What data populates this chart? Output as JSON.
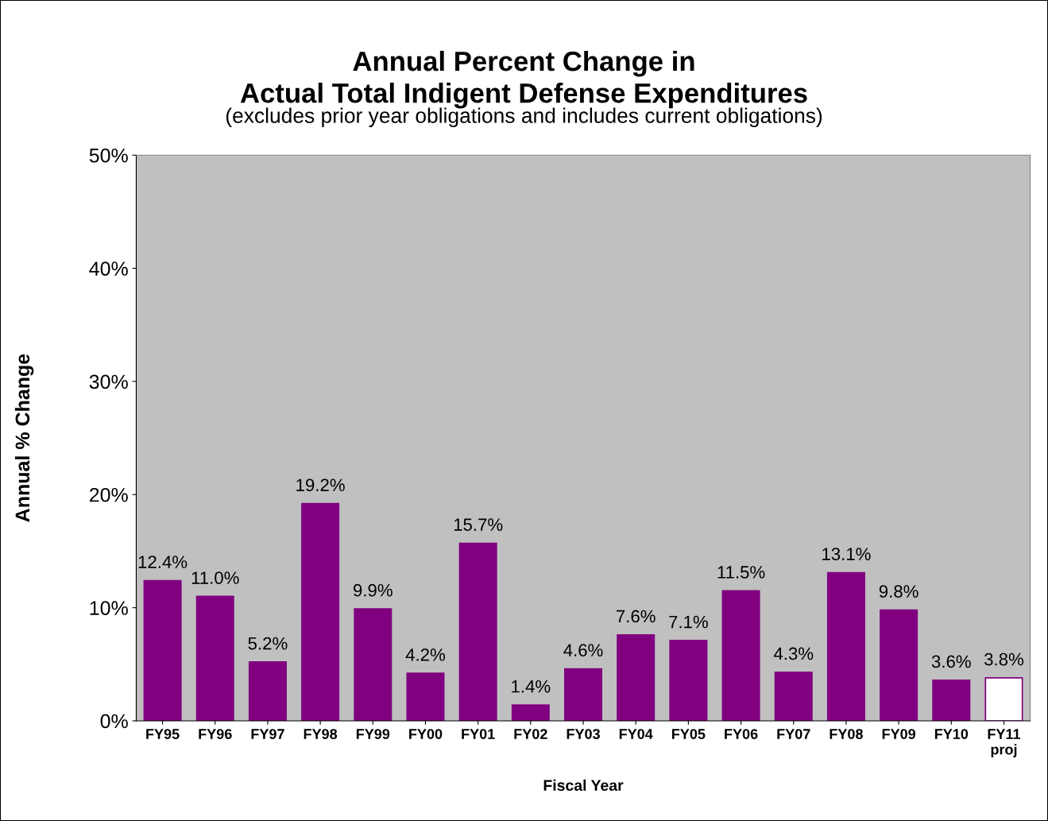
{
  "chart_data": {
    "type": "bar",
    "title": "Annual Percent Change in\nActual Total Indigent Defense Expenditures",
    "subtitle": "(excludes prior year obligations and includes current obligations)",
    "xlabel": "Fiscal Year",
    "ylabel": "Annual % Change",
    "categories": [
      "FY95",
      "FY96",
      "FY97",
      "FY98",
      "FY99",
      "FY00",
      "FY01",
      "FY02",
      "FY03",
      "FY04",
      "FY05",
      "FY06",
      "FY07",
      "FY08",
      "FY09",
      "FY10",
      "FY11\nproj"
    ],
    "values": [
      12.4,
      11.0,
      5.2,
      19.2,
      9.9,
      4.2,
      15.7,
      1.4,
      4.6,
      7.6,
      7.1,
      11.5,
      4.3,
      13.1,
      9.8,
      3.6,
      3.8
    ],
    "colors": [
      "#800080",
      "#800080",
      "#800080",
      "#800080",
      "#800080",
      "#800080",
      "#800080",
      "#800080",
      "#800080",
      "#800080",
      "#800080",
      "#800080",
      "#800080",
      "#800080",
      "#800080",
      "#800080",
      "#ffffff"
    ],
    "value_labels": [
      "12.4%",
      "11.0%",
      "5.2%",
      "19.2%",
      "9.9%",
      "4.2%",
      "15.7%",
      "1.4%",
      "4.6%",
      "7.6%",
      "7.1%",
      "11.5%",
      "4.3%",
      "13.1%",
      "9.8%",
      "3.6%",
      "3.8%"
    ],
    "ylim": [
      0,
      50
    ],
    "yticks": [
      {
        "value": 0,
        "label": "0%"
      },
      {
        "value": 10,
        "label": "10%"
      },
      {
        "value": 20,
        "label": "20%"
      },
      {
        "value": 30,
        "label": "30%"
      },
      {
        "value": 40,
        "label": "40%"
      },
      {
        "value": 50,
        "label": "50%"
      }
    ],
    "grid": false,
    "legend": false
  }
}
